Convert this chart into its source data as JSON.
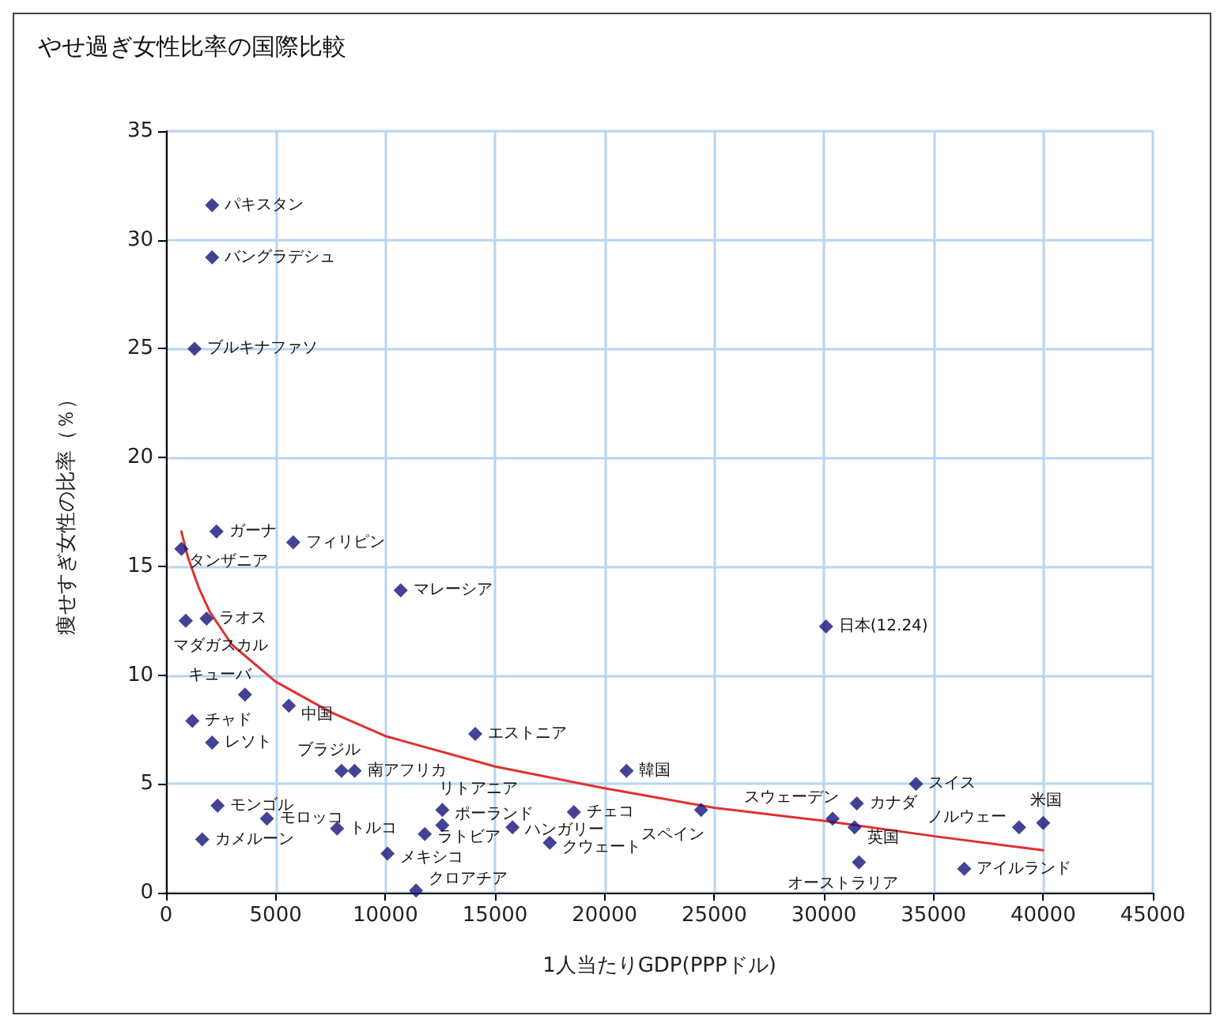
{
  "chart_data": {
    "type": "scatter",
    "title": "やせ過ぎ女性比率の国際比較",
    "xlabel": "1人当たりGDP(PPPドル)",
    "ylabel": "痩せすぎ女性の比率（％）",
    "xlim": [
      0,
      45000
    ],
    "xticks": [
      0,
      5000,
      10000,
      15000,
      20000,
      25000,
      30000,
      35000,
      40000,
      45000
    ],
    "ylim": [
      0,
      35
    ],
    "yticks": [
      0,
      5,
      10,
      15,
      20,
      25,
      30,
      35
    ],
    "grid": true,
    "series": [
      {
        "color": "#14147a",
        "marker": "diamond",
        "x": [
          2100,
          2100,
          1300,
          2300,
          700,
          5800,
          10700,
          900,
          1850,
          3600,
          5600,
          1200,
          2100,
          14100,
          8000,
          8600,
          21000,
          30100,
          2350,
          4600,
          1650,
          7800,
          12600,
          12600,
          11800,
          10100,
          11400,
          15800,
          18600,
          17500,
          24400,
          30400,
          31500,
          31400,
          31600,
          34200,
          38900,
          40000,
          36400
        ],
        "values": [
          31.6,
          29.2,
          25.0,
          16.6,
          15.8,
          16.1,
          13.9,
          12.5,
          12.6,
          9.1,
          8.6,
          7.9,
          6.9,
          7.3,
          5.6,
          5.6,
          5.6,
          12.24,
          4.0,
          3.4,
          2.45,
          2.95,
          3.8,
          3.1,
          2.7,
          1.8,
          0.1,
          3.0,
          3.7,
          2.3,
          3.8,
          3.4,
          4.1,
          3.0,
          1.4,
          5.0,
          3.0,
          3.2,
          1.1
        ]
      },
      {
        "type": "line",
        "color": "#e03030",
        "x": [
          700,
          1000,
          1500,
          2000,
          3000,
          5000,
          7500,
          10000,
          15000,
          20000,
          25000,
          30000,
          35000,
          40000
        ],
        "values": [
          16.6,
          15.4,
          14.0,
          12.9,
          11.4,
          9.7,
          8.3,
          7.2,
          5.8,
          4.8,
          3.9,
          3.3,
          2.6,
          1.95
        ]
      }
    ],
    "annotations": [
      {
        "text": "パキスタン",
        "x": 2100,
        "y": 31.6
      },
      {
        "text": "バングラデシュ",
        "x": 2100,
        "y": 29.2
      },
      {
        "text": "ブルキナファソ",
        "x": 1300,
        "y": 25.0
      },
      {
        "text": "ガーナ",
        "x": 2300,
        "y": 16.6
      },
      {
        "text": "タンザニア",
        "x": 700,
        "y": 15.8
      },
      {
        "text": "フィリピン",
        "x": 5800,
        "y": 16.1
      },
      {
        "text": "マレーシア",
        "x": 10700,
        "y": 13.9
      },
      {
        "text": "マダガスカル",
        "x": 900,
        "y": 12.5
      },
      {
        "text": "ラオス",
        "x": 1850,
        "y": 12.6
      },
      {
        "text": "キューバ",
        "x": 3600,
        "y": 9.1
      },
      {
        "text": "中国",
        "x": 5600,
        "y": 8.6
      },
      {
        "text": "チャド",
        "x": 1200,
        "y": 7.9
      },
      {
        "text": "レソト",
        "x": 2100,
        "y": 6.9
      },
      {
        "text": "エストニア",
        "x": 14100,
        "y": 7.3
      },
      {
        "text": "ブラジル",
        "x": 8000,
        "y": 5.6
      },
      {
        "text": "南アフリカ",
        "x": 8600,
        "y": 5.6
      },
      {
        "text": "韓国",
        "x": 21000,
        "y": 5.6
      },
      {
        "text": "日本(12.24)",
        "x": 30100,
        "y": 12.24
      },
      {
        "text": "モンゴル",
        "x": 2350,
        "y": 4.0
      },
      {
        "text": "モロッコ",
        "x": 4600,
        "y": 3.4
      },
      {
        "text": "カメルーン",
        "x": 1650,
        "y": 2.45
      },
      {
        "text": "トルコ",
        "x": 7800,
        "y": 2.95
      },
      {
        "text": "リトアニア",
        "x": 12600,
        "y": 3.8
      },
      {
        "text": "ポーランド",
        "x": 12600,
        "y": 3.1
      },
      {
        "text": "ラトビア",
        "x": 11800,
        "y": 2.7
      },
      {
        "text": "メキシコ",
        "x": 10100,
        "y": 1.8
      },
      {
        "text": "クロアチア",
        "x": 11400,
        "y": 0.1
      },
      {
        "text": "ハンガリー",
        "x": 15800,
        "y": 3.0
      },
      {
        "text": "チェコ",
        "x": 18600,
        "y": 3.7
      },
      {
        "text": "クウェート",
        "x": 17500,
        "y": 2.3
      },
      {
        "text": "スペイン",
        "x": 24400,
        "y": 3.8
      },
      {
        "text": "スウェーデン",
        "x": 30400,
        "y": 3.4
      },
      {
        "text": "カナダ",
        "x": 31500,
        "y": 4.1
      },
      {
        "text": "英国",
        "x": 31400,
        "y": 3.0
      },
      {
        "text": "オーストラリア",
        "x": 31600,
        "y": 1.4
      },
      {
        "text": "スイス",
        "x": 34200,
        "y": 5.0
      },
      {
        "text": "ノルウェー",
        "x": 38900,
        "y": 3.0
      },
      {
        "text": "米国",
        "x": 40000,
        "y": 3.2
      },
      {
        "text": "アイルランド",
        "x": 36400,
        "y": 1.1
      }
    ]
  }
}
